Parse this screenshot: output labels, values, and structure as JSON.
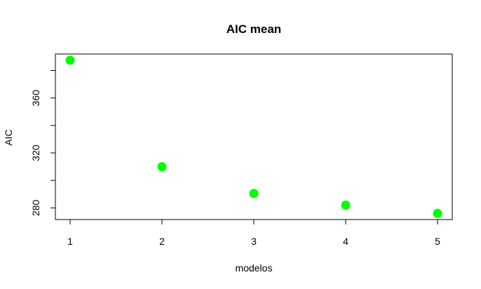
{
  "chart_data": {
    "type": "scatter",
    "title": "AIC mean",
    "xlabel": "modelos",
    "ylabel": "AIC",
    "x": [
      1,
      2,
      3,
      4,
      5
    ],
    "y": [
      387.5,
      310,
      290.5,
      282,
      276
    ],
    "xlim": [
      0.84,
      5.16
    ],
    "ylim": [
      271.5,
      392.0
    ],
    "xticks": [
      "1",
      "2",
      "3",
      "4",
      "5"
    ],
    "yticks": [
      "280",
      "320",
      "360"
    ],
    "yticks_minor": [
      300,
      340,
      380
    ],
    "point_color": "#00ff00",
    "grid": false,
    "legend": "none"
  }
}
